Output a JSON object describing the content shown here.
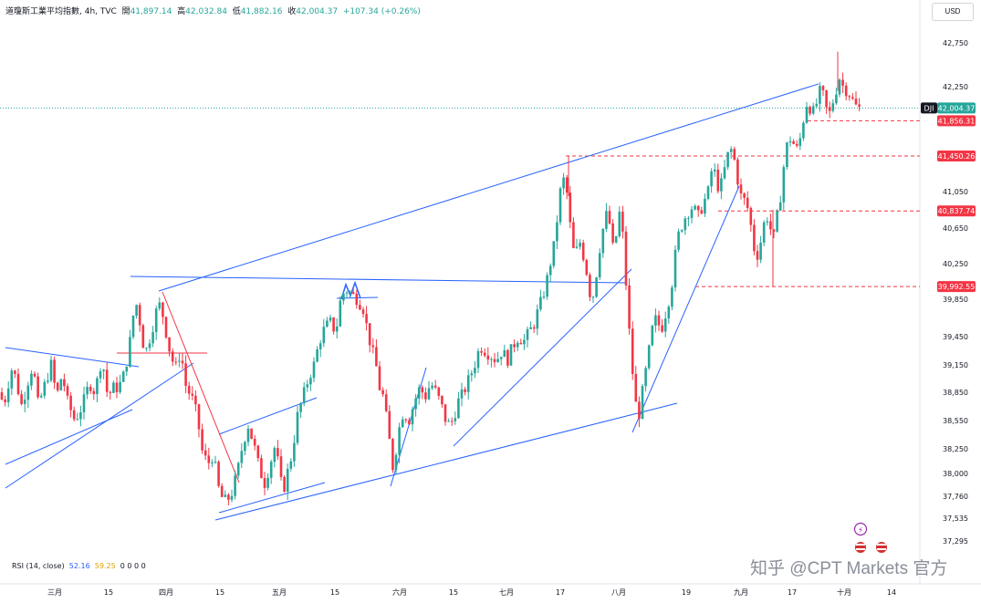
{
  "header": {
    "title": "道瓊斯工業平均指數, 4h, TVC",
    "open_label": "開",
    "open": "41,897.14",
    "high_label": "高",
    "high": "42,032.84",
    "low_label": "低",
    "low": "41,882.16",
    "close_label": "收",
    "close": "42,004.37",
    "change": "+107.34 (+0.26%)"
  },
  "currency_button": "USD",
  "rsi": {
    "label": "RSI (14, close)",
    "value1": "52.16",
    "value2": "59.25",
    "placeholders": "0 0 0 0"
  },
  "watermark": "知乎 @CPT Markets 官方",
  "chart_data": {
    "type": "candlestick",
    "symbol": "DJI",
    "timeframe": "4h",
    "y_ticks": [
      42750,
      42250,
      41450,
      41050,
      40650,
      40250,
      39850,
      39450,
      39150,
      38850,
      38550,
      38250,
      38000,
      37760,
      37535,
      37295
    ],
    "y_tick_labels": [
      "42,750",
      "42,250",
      "41,450",
      "41,050",
      "40,650",
      "40,250",
      "39,850",
      "39,450",
      "39,150",
      "38,850",
      "38,550",
      "38,250",
      "38,000",
      "37,760",
      "37,535",
      "37,295"
    ],
    "x_labels": [
      "三月",
      "15",
      "四月",
      "15",
      "五月",
      "15",
      "六月",
      "15",
      "七月",
      "17",
      "八月",
      "19",
      "九月",
      "17",
      "十月",
      "14"
    ],
    "price_tags": [
      {
        "label": "DJI",
        "value": "42,004.37",
        "color": "#26a69a"
      },
      {
        "value": "41,856.31",
        "color": "#f23645"
      },
      {
        "value": "41,450.26",
        "color": "#f23645"
      },
      {
        "value": "40,837.74",
        "color": "#f23645"
      },
      {
        "value": "39,992.55",
        "color": "#f23645"
      }
    ],
    "horizontal_levels": [
      42004.37,
      41856.31,
      41450.26,
      40837.74,
      39992.55
    ],
    "colors": {
      "up": "#26a69a",
      "down": "#f23645",
      "trendline": "#2962ff",
      "pink_line": "#f23645"
    },
    "close_anchors": [
      [
        0,
        38850
      ],
      [
        4,
        38700
      ],
      [
        8,
        38900
      ],
      [
        14,
        39150
      ],
      [
        18,
        38950
      ],
      [
        24,
        38700
      ],
      [
        30,
        38950
      ],
      [
        36,
        39150
      ],
      [
        42,
        38700
      ],
      [
        48,
        38900
      ],
      [
        56,
        39150
      ],
      [
        62,
        38800
      ],
      [
        68,
        39050
      ],
      [
        74,
        38750
      ],
      [
        82,
        38550
      ],
      [
        90,
        38700
      ],
      [
        98,
        38950
      ],
      [
        104,
        38850
      ],
      [
        110,
        39150
      ],
      [
        114,
        39100
      ],
      [
        118,
        38800
      ],
      [
        124,
        38900
      ],
      [
        130,
        38900
      ],
      [
        136,
        39050
      ],
      [
        140,
        39250
      ],
      [
        144,
        39500
      ],
      [
        148,
        39850
      ],
      [
        152,
        39700
      ],
      [
        156,
        39400
      ],
      [
        160,
        39300
      ],
      [
        166,
        39500
      ],
      [
        172,
        39750
      ],
      [
        176,
        39800
      ],
      [
        180,
        39600
      ],
      [
        186,
        39300
      ],
      [
        192,
        39100
      ],
      [
        198,
        39300
      ],
      [
        204,
        38900
      ],
      [
        210,
        38800
      ],
      [
        216,
        38600
      ],
      [
        222,
        38200
      ],
      [
        228,
        38100
      ],
      [
        234,
        38200
      ],
      [
        238,
        37900
      ],
      [
        242,
        37760
      ],
      [
        248,
        37700
      ],
      [
        254,
        37800
      ],
      [
        260,
        38000
      ],
      [
        266,
        38300
      ],
      [
        272,
        38500
      ],
      [
        278,
        38300
      ],
      [
        284,
        38050
      ],
      [
        290,
        37900
      ],
      [
        296,
        38100
      ],
      [
        302,
        38300
      ],
      [
        306,
        38000
      ],
      [
        310,
        37800
      ],
      [
        316,
        38050
      ],
      [
        320,
        38200
      ],
      [
        326,
        38600
      ],
      [
        332,
        38800
      ],
      [
        338,
        39000
      ],
      [
        344,
        39150
      ],
      [
        350,
        39400
      ],
      [
        356,
        39550
      ],
      [
        362,
        39600
      ],
      [
        368,
        39500
      ],
      [
        374,
        39900
      ],
      [
        380,
        39950
      ],
      [
        386,
        39900
      ],
      [
        392,
        39850
      ],
      [
        398,
        39750
      ],
      [
        404,
        39450
      ],
      [
        408,
        39300
      ],
      [
        412,
        39150
      ],
      [
        416,
        38900
      ],
      [
        420,
        38800
      ],
      [
        426,
        38400
      ],
      [
        430,
        38050
      ],
      [
        434,
        38250
      ],
      [
        438,
        38500
      ],
      [
        442,
        38650
      ],
      [
        448,
        38550
      ],
      [
        454,
        38750
      ],
      [
        460,
        38900
      ],
      [
        466,
        38800
      ],
      [
        472,
        38950
      ],
      [
        478,
        38850
      ],
      [
        484,
        38700
      ],
      [
        490,
        38500
      ],
      [
        496,
        38550
      ],
      [
        502,
        38750
      ],
      [
        508,
        38850
      ],
      [
        514,
        39000
      ],
      [
        520,
        39150
      ],
      [
        526,
        39350
      ],
      [
        532,
        39300
      ],
      [
        538,
        39250
      ],
      [
        544,
        39200
      ],
      [
        550,
        39300
      ],
      [
        556,
        39200
      ],
      [
        562,
        39350
      ],
      [
        568,
        39450
      ],
      [
        574,
        39400
      ],
      [
        580,
        39500
      ],
      [
        586,
        39600
      ],
      [
        590,
        39750
      ],
      [
        594,
        39850
      ],
      [
        598,
        40000
      ],
      [
        604,
        40300
      ],
      [
        608,
        40500
      ],
      [
        612,
        40900
      ],
      [
        616,
        41200
      ],
      [
        620,
        41150
      ],
      [
        624,
        40750
      ],
      [
        628,
        40400
      ],
      [
        632,
        40400
      ],
      [
        636,
        40500
      ],
      [
        640,
        40300
      ],
      [
        644,
        40100
      ],
      [
        648,
        39800
      ],
      [
        652,
        40000
      ],
      [
        656,
        40350
      ],
      [
        660,
        40600
      ],
      [
        664,
        40800
      ],
      [
        668,
        40700
      ],
      [
        672,
        40400
      ],
      [
        676,
        40600
      ],
      [
        680,
        40900
      ],
      [
        684,
        40350
      ],
      [
        688,
        39700
      ],
      [
        692,
        39200
      ],
      [
        696,
        38750
      ],
      [
        700,
        38600
      ],
      [
        704,
        38850
      ],
      [
        708,
        39100
      ],
      [
        712,
        39350
      ],
      [
        716,
        39600
      ],
      [
        720,
        39650
      ],
      [
        724,
        39500
      ],
      [
        728,
        39650
      ],
      [
        732,
        39800
      ],
      [
        736,
        40000
      ],
      [
        740,
        40350
      ],
      [
        744,
        40600
      ],
      [
        748,
        40700
      ],
      [
        752,
        40800
      ],
      [
        756,
        40850
      ],
      [
        760,
        40900
      ],
      [
        764,
        40750
      ],
      [
        768,
        40850
      ],
      [
        772,
        40950
      ],
      [
        776,
        41050
      ],
      [
        780,
        41300
      ],
      [
        784,
        41250
      ],
      [
        788,
        41050
      ],
      [
        792,
        41200
      ],
      [
        796,
        41400
      ],
      [
        800,
        41550
      ],
      [
        804,
        41450
      ],
      [
        808,
        41200
      ],
      [
        812,
        41000
      ],
      [
        816,
        40950
      ],
      [
        820,
        40850
      ],
      [
        824,
        40600
      ],
      [
        828,
        40300
      ],
      [
        832,
        40400
      ],
      [
        836,
        40650
      ],
      [
        840,
        40800
      ],
      [
        844,
        40650
      ],
      [
        848,
        40550
      ],
      [
        852,
        40800
      ],
      [
        856,
        41050
      ],
      [
        860,
        41450
      ],
      [
        864,
        41650
      ],
      [
        868,
        41650
      ],
      [
        872,
        41500
      ],
      [
        876,
        41600
      ],
      [
        880,
        41850
      ],
      [
        884,
        42050
      ],
      [
        888,
        42000
      ],
      [
        892,
        41950
      ],
      [
        896,
        42100
      ],
      [
        900,
        42250
      ],
      [
        904,
        42050
      ],
      [
        908,
        41900
      ],
      [
        912,
        42050
      ],
      [
        916,
        42200
      ],
      [
        920,
        42350
      ],
      [
        924,
        42250
      ],
      [
        928,
        42200
      ],
      [
        932,
        42150
      ],
      [
        936,
        42050
      ],
      [
        940,
        42000
      ],
      [
        944,
        42004
      ]
    ]
  }
}
